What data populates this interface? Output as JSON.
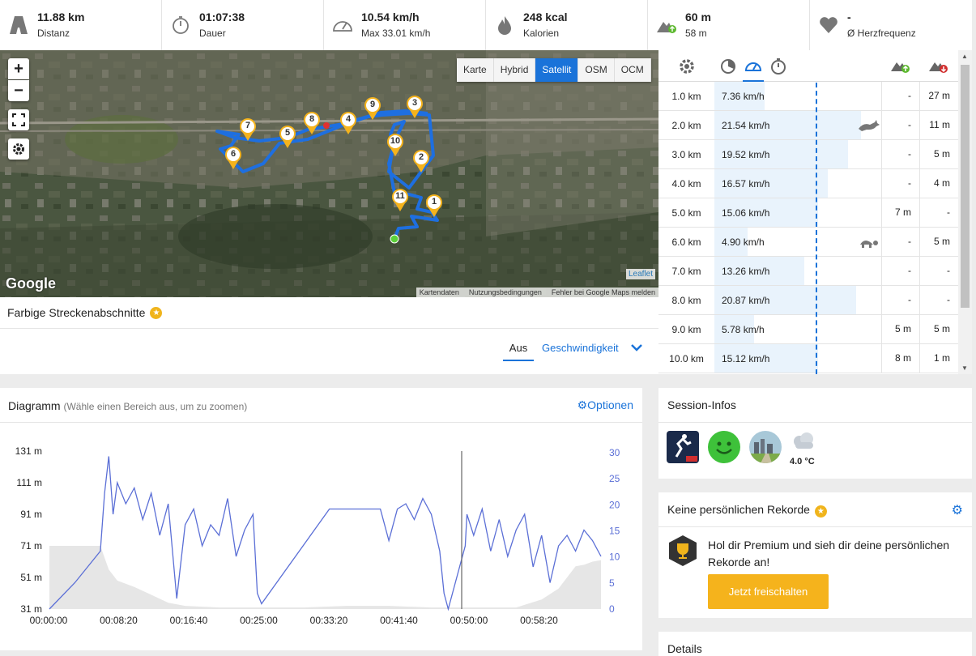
{
  "stats": [
    {
      "value": "11.88 km",
      "label": "Distanz",
      "icon": "road-icon"
    },
    {
      "value": "01:07:38",
      "label": "Dauer",
      "icon": "stopwatch-icon"
    },
    {
      "value": "10.54 km/h",
      "label": "Max 33.01 km/h",
      "icon": "speedometer-icon"
    },
    {
      "value": "248 kcal",
      "label": "Kalorien",
      "icon": "flame-icon"
    },
    {
      "value": "60 m",
      "label": "58 m",
      "icon": "elevation-icon"
    },
    {
      "value": "-",
      "label": "Ø Herzfrequenz",
      "icon": "heart-icon"
    }
  ],
  "map": {
    "zoom_in": "+",
    "zoom_out": "−",
    "types": [
      "Karte",
      "Hybrid",
      "Satellit",
      "OSM",
      "OCM"
    ],
    "active_type": "Satellit",
    "google": "Google",
    "leaflet": "Leaflet",
    "attribution": [
      "Kartendaten",
      "Nutzungsbedingungen",
      "Fehler bei Google Maps melden"
    ],
    "markers": [
      "1",
      "2",
      "3",
      "4",
      "5",
      "6",
      "7",
      "8",
      "9",
      "10",
      "11"
    ]
  },
  "farbig": {
    "title": "Farbige Streckenabschnitte",
    "aus": "Aus",
    "geschw": "Geschwindigkeit"
  },
  "splits": {
    "rows": [
      {
        "km": "1.0 km",
        "speed": "7.36 km/h",
        "frac": 0.3,
        "up": "-",
        "down": "27 m"
      },
      {
        "km": "2.0 km",
        "speed": "21.54 km/h",
        "frac": 0.88,
        "up": "-",
        "down": "11 m",
        "icon": "rabbit"
      },
      {
        "km": "3.0 km",
        "speed": "19.52 km/h",
        "frac": 0.8,
        "up": "-",
        "down": "5 m"
      },
      {
        "km": "4.0 km",
        "speed": "16.57 km/h",
        "frac": 0.68,
        "up": "-",
        "down": "4 m"
      },
      {
        "km": "5.0 km",
        "speed": "15.06 km/h",
        "frac": 0.62,
        "up": "7 m",
        "down": "-"
      },
      {
        "km": "6.0 km",
        "speed": "4.90 km/h",
        "frac": 0.2,
        "up": "-",
        "down": "5 m",
        "icon": "turtle"
      },
      {
        "km": "7.0 km",
        "speed": "13.26 km/h",
        "frac": 0.54,
        "up": "-",
        "down": "-"
      },
      {
        "km": "8.0 km",
        "speed": "20.87 km/h",
        "frac": 0.85,
        "up": "-",
        "down": "-"
      },
      {
        "km": "9.0 km",
        "speed": "5.78 km/h",
        "frac": 0.24,
        "up": "5 m",
        "down": "5 m"
      },
      {
        "km": "10.0 km",
        "speed": "15.12 km/h",
        "frac": 0.62,
        "up": "8 m",
        "down": "1 m"
      }
    ]
  },
  "diagram": {
    "title": "Diagramm",
    "hint": "(Wähle einen Bereich aus, um zu zoomen)",
    "options": "Optionen"
  },
  "chart_data": {
    "type": "line",
    "x_ticks": [
      "00:00:00",
      "00:08:20",
      "00:16:40",
      "00:25:00",
      "00:33:20",
      "00:41:40",
      "00:50:00",
      "00:58:20"
    ],
    "y_left_ticks": [
      "131 m",
      "111 m",
      "91 m",
      "71 m",
      "51 m",
      "31 m"
    ],
    "y_right_ticks": [
      "30",
      "25",
      "20",
      "15",
      "10",
      "5",
      "0"
    ],
    "series": [
      {
        "color": "#5b6fd6",
        "x": [
          0,
          3,
          6,
          6.5,
          7,
          7.5,
          8,
          9,
          10,
          11,
          12,
          13,
          14,
          15,
          16,
          17,
          18,
          19,
          20,
          21,
          22,
          23,
          24,
          24.5,
          25,
          33,
          39,
          40,
          41,
          42,
          43,
          44,
          45,
          46,
          46.5,
          47,
          49,
          49.2,
          50,
          51,
          52,
          53,
          54,
          55,
          56,
          57,
          58,
          59,
          60,
          61,
          62,
          63,
          64,
          65
        ],
        "values": [
          0,
          5,
          11,
          22,
          29,
          18,
          24,
          20,
          23,
          17,
          22,
          14,
          20,
          2,
          16,
          19,
          12,
          16,
          14,
          21,
          10,
          15,
          18,
          3,
          1,
          19,
          19,
          13,
          19,
          20,
          17,
          21,
          18,
          11,
          3,
          0,
          12,
          18,
          14,
          19,
          11,
          17,
          10,
          15,
          18,
          8,
          14,
          5,
          12,
          14,
          11,
          15,
          13,
          10
        ]
      }
    ],
    "elevation_area": {
      "color": "#e6e6e6",
      "x": [
        0,
        5,
        6,
        7,
        8,
        10,
        12,
        14,
        16,
        20,
        25,
        30,
        35,
        40,
        45,
        50,
        55,
        58,
        60,
        62,
        63,
        64,
        65
      ],
      "values": [
        71,
        71,
        71,
        56,
        49,
        45,
        40,
        35,
        33,
        32,
        32,
        32,
        33,
        33,
        32,
        32,
        32,
        37,
        44,
        58,
        59,
        61,
        62
      ]
    }
  },
  "session": {
    "title": "Session-Infos",
    "temp": "4.0 °C"
  },
  "rekorde": {
    "title": "Keine persönlichen Rekorde",
    "text1": "Hol dir Premium und sieh dir deine persönlichen",
    "text2": "Rekorde an!",
    "button": "Jetzt freischalten"
  },
  "details": {
    "title": "Details"
  }
}
